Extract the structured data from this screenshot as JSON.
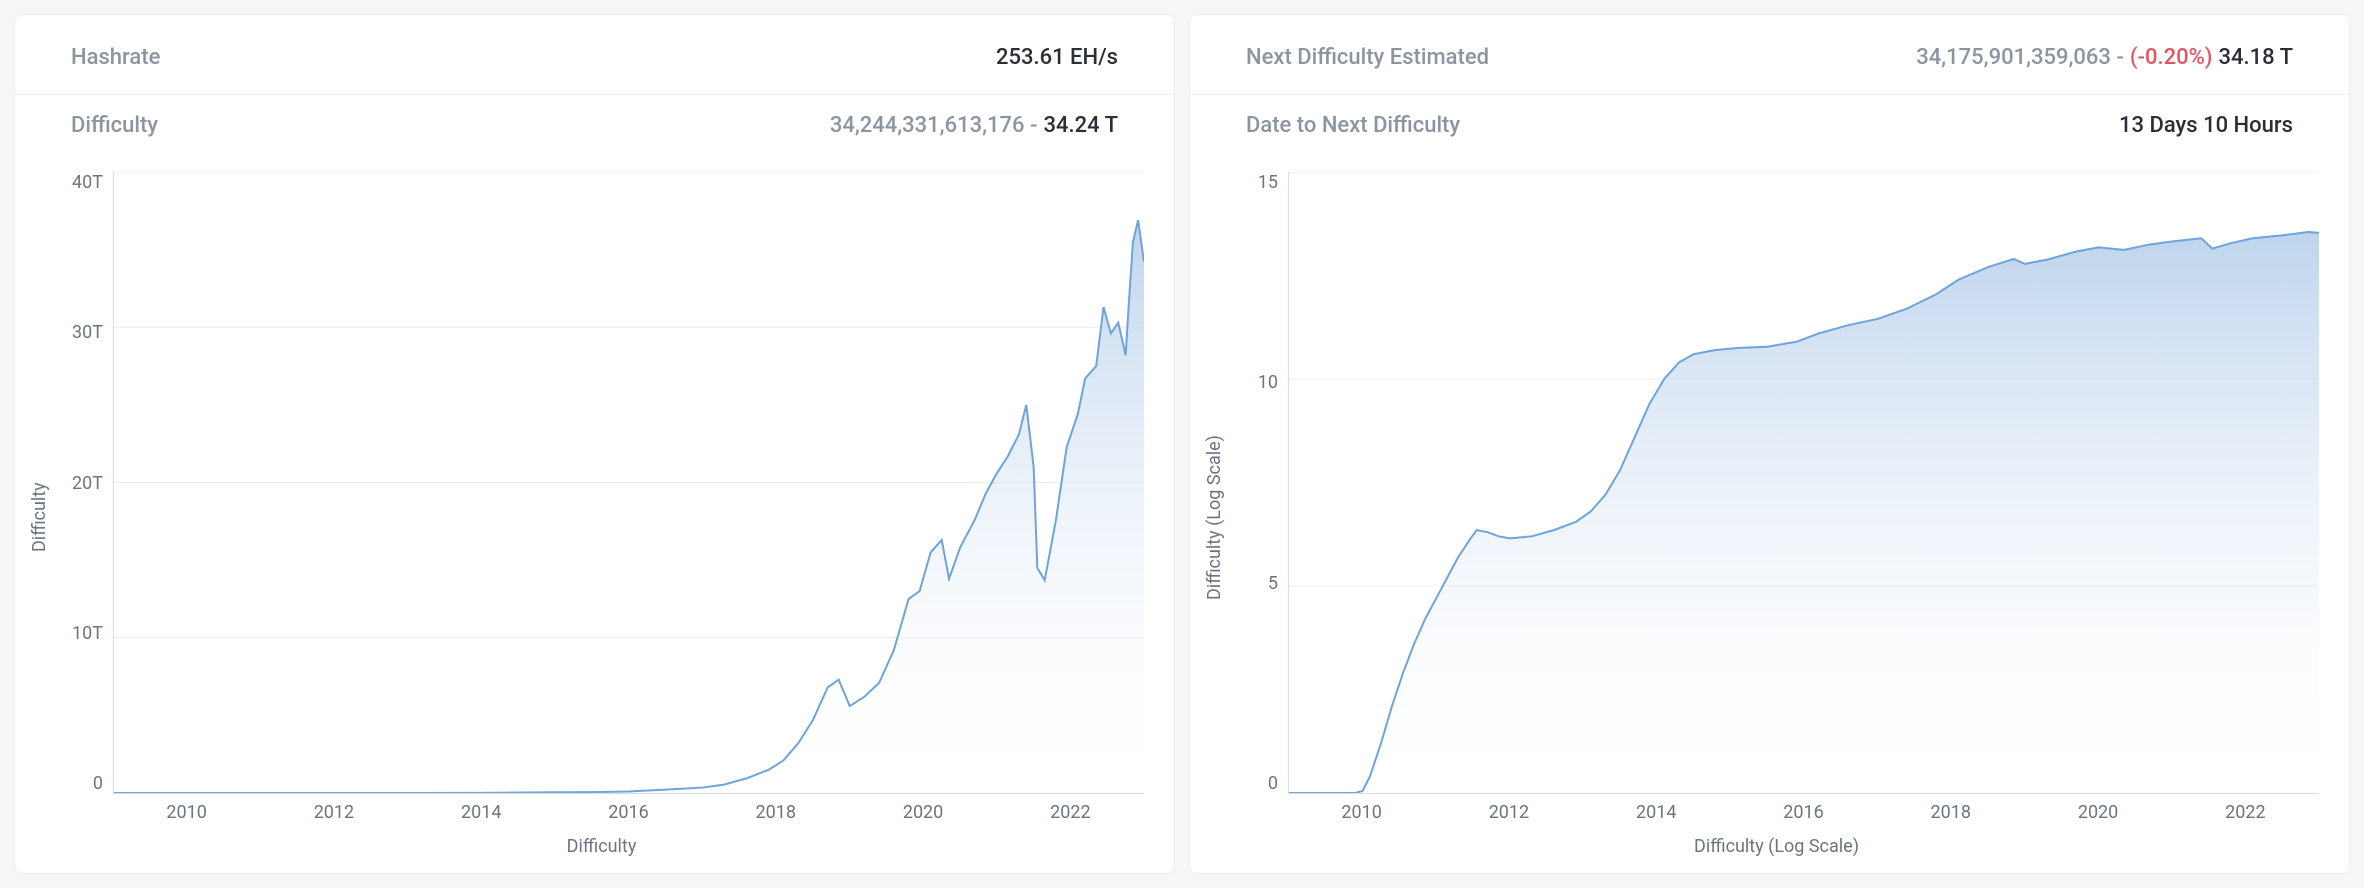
{
  "left": {
    "stats": [
      {
        "label": "Hashrate",
        "value_main": "253.61 EH/s"
      },
      {
        "label": "Difficulty",
        "value_muted": "34,244,331,613,176 -",
        "value_main": "34.24 T"
      }
    ],
    "chart": {
      "type": "area",
      "y_title": "Difficulty",
      "x_title": "Difficulty",
      "line_color": "#6fa3dd",
      "fill_top_color": "#b7cfeb",
      "fill_bottom_color": "#ffffff",
      "grid_color": "#e9ecef",
      "background_color": "#ffffff",
      "xlim": [
        2009,
        2023
      ],
      "ylim": [
        0,
        40
      ],
      "y_ticks": [
        0,
        10,
        20,
        30,
        40
      ],
      "y_tick_labels": [
        "0",
        "10T",
        "20T",
        "30T",
        "40T"
      ],
      "x_ticks": [
        2010,
        2012,
        2014,
        2016,
        2018,
        2020,
        2022
      ],
      "x_tick_labels": [
        "2010",
        "2012",
        "2014",
        "2016",
        "2018",
        "2020",
        "2022"
      ],
      "data": [
        [
          2009.0,
          0.0
        ],
        [
          2010.0,
          0.0
        ],
        [
          2011.0,
          0.0
        ],
        [
          2012.0,
          0.0
        ],
        [
          2013.0,
          0.0
        ],
        [
          2014.0,
          0.01
        ],
        [
          2015.0,
          0.05
        ],
        [
          2015.5,
          0.06
        ],
        [
          2016.0,
          0.1
        ],
        [
          2016.5,
          0.22
        ],
        [
          2017.0,
          0.35
        ],
        [
          2017.3,
          0.55
        ],
        [
          2017.6,
          0.95
        ],
        [
          2017.9,
          1.5
        ],
        [
          2018.1,
          2.1
        ],
        [
          2018.3,
          3.2
        ],
        [
          2018.5,
          4.7
        ],
        [
          2018.7,
          6.8
        ],
        [
          2018.85,
          7.3
        ],
        [
          2019.0,
          5.6
        ],
        [
          2019.2,
          6.2
        ],
        [
          2019.4,
          7.1
        ],
        [
          2019.6,
          9.2
        ],
        [
          2019.8,
          12.5
        ],
        [
          2019.95,
          13.0
        ],
        [
          2020.1,
          15.5
        ],
        [
          2020.25,
          16.3
        ],
        [
          2020.35,
          13.8
        ],
        [
          2020.5,
          15.8
        ],
        [
          2020.7,
          17.6
        ],
        [
          2020.85,
          19.3
        ],
        [
          2021.0,
          20.6
        ],
        [
          2021.15,
          21.7
        ],
        [
          2021.3,
          23.1
        ],
        [
          2021.4,
          25.0
        ],
        [
          2021.5,
          21.0
        ],
        [
          2021.55,
          14.5
        ],
        [
          2021.65,
          13.7
        ],
        [
          2021.8,
          17.5
        ],
        [
          2021.95,
          22.3
        ],
        [
          2022.1,
          24.4
        ],
        [
          2022.2,
          26.7
        ],
        [
          2022.35,
          27.5
        ],
        [
          2022.45,
          31.3
        ],
        [
          2022.55,
          29.6
        ],
        [
          2022.65,
          30.3
        ],
        [
          2022.75,
          28.2
        ],
        [
          2022.8,
          32.0
        ],
        [
          2022.85,
          35.5
        ],
        [
          2022.92,
          36.9
        ],
        [
          2023.0,
          34.2
        ]
      ]
    }
  },
  "right": {
    "stats": [
      {
        "label": "Next Difficulty Estimated",
        "value_muted": "34,175,901,359,063 -",
        "value_change": "(-0.20%)",
        "value_main": "34.18 T"
      },
      {
        "label": "Date to Next Difficulty",
        "value_main": "13 Days 10 Hours"
      }
    ],
    "chart": {
      "type": "area",
      "y_title": "Difficulty (Log Scale)",
      "x_title": "Difficulty (Log Scale)",
      "line_color": "#6fa3dd",
      "fill_top_color": "#b7cfeb",
      "fill_bottom_color": "#ffffff",
      "grid_color": "#e9ecef",
      "background_color": "#ffffff",
      "xlim": [
        2009,
        2023
      ],
      "ylim": [
        0,
        15
      ],
      "y_ticks": [
        0,
        5,
        10,
        15
      ],
      "y_tick_labels": [
        "0",
        "5",
        "10",
        "15"
      ],
      "x_ticks": [
        2010,
        2012,
        2014,
        2016,
        2018,
        2020,
        2022
      ],
      "x_tick_labels": [
        "2010",
        "2012",
        "2014",
        "2016",
        "2018",
        "2020",
        "2022"
      ],
      "data": [
        [
          2009.0,
          0.0
        ],
        [
          2009.5,
          0.0
        ],
        [
          2009.9,
          0.0
        ],
        [
          2010.0,
          0.05
        ],
        [
          2010.1,
          0.4
        ],
        [
          2010.25,
          1.2
        ],
        [
          2010.4,
          2.1
        ],
        [
          2010.55,
          2.9
        ],
        [
          2010.7,
          3.6
        ],
        [
          2010.85,
          4.2
        ],
        [
          2011.0,
          4.7
        ],
        [
          2011.15,
          5.2
        ],
        [
          2011.3,
          5.7
        ],
        [
          2011.45,
          6.1
        ],
        [
          2011.55,
          6.35
        ],
        [
          2011.7,
          6.3
        ],
        [
          2011.85,
          6.2
        ],
        [
          2012.0,
          6.15
        ],
        [
          2012.3,
          6.2
        ],
        [
          2012.6,
          6.35
        ],
        [
          2012.9,
          6.55
        ],
        [
          2013.1,
          6.8
        ],
        [
          2013.3,
          7.2
        ],
        [
          2013.5,
          7.8
        ],
        [
          2013.7,
          8.6
        ],
        [
          2013.9,
          9.4
        ],
        [
          2014.1,
          10.0
        ],
        [
          2014.3,
          10.4
        ],
        [
          2014.5,
          10.6
        ],
        [
          2014.8,
          10.7
        ],
        [
          2015.1,
          10.75
        ],
        [
          2015.5,
          10.78
        ],
        [
          2015.9,
          10.9
        ],
        [
          2016.2,
          11.1
        ],
        [
          2016.6,
          11.3
        ],
        [
          2017.0,
          11.45
        ],
        [
          2017.4,
          11.7
        ],
        [
          2017.8,
          12.05
        ],
        [
          2018.1,
          12.4
        ],
        [
          2018.5,
          12.7
        ],
        [
          2018.85,
          12.9
        ],
        [
          2019.0,
          12.78
        ],
        [
          2019.3,
          12.88
        ],
        [
          2019.7,
          13.08
        ],
        [
          2020.0,
          13.18
        ],
        [
          2020.35,
          13.12
        ],
        [
          2020.7,
          13.25
        ],
        [
          2021.0,
          13.32
        ],
        [
          2021.4,
          13.4
        ],
        [
          2021.55,
          13.15
        ],
        [
          2021.8,
          13.28
        ],
        [
          2022.1,
          13.4
        ],
        [
          2022.5,
          13.47
        ],
        [
          2022.85,
          13.55
        ],
        [
          2023.0,
          13.53
        ]
      ]
    }
  }
}
